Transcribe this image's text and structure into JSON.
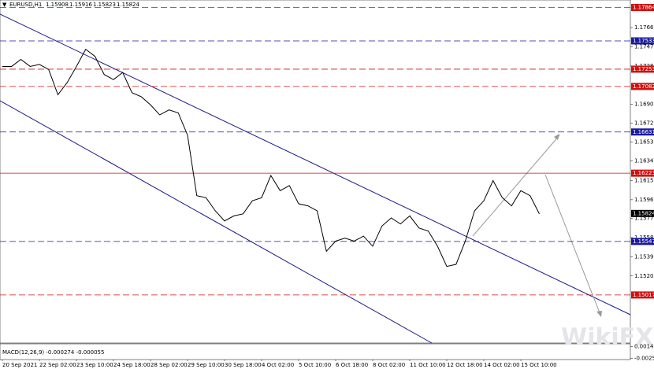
{
  "chart_data": {
    "type": "line",
    "title": "EURUSD,H1",
    "ohlc": [
      "1.15908",
      "1.15916",
      "1.15823",
      "1.15824"
    ],
    "categories": [
      "20 Sep 2021",
      null,
      null,
      null,
      "22 Sep 02:00",
      null,
      null,
      null,
      "23 Sep 10:00",
      null,
      null,
      null,
      "24 Sep 18:00",
      null,
      null,
      null,
      "28 Sep 02:00",
      null,
      null,
      null,
      "29 Sep 10:00",
      null,
      null,
      null,
      "30 Sep 18:00",
      null,
      null,
      null,
      "4 Oct 02:00",
      null,
      null,
      null,
      "5 Oct 10:00",
      null,
      null,
      null,
      "6 Oct 18:00",
      null,
      null,
      null,
      "8 Oct 02:00",
      null,
      null,
      null,
      "11 Oct 10:00",
      null,
      null,
      null,
      "12 Oct 18:00",
      null,
      null,
      null,
      "14 Oct 02:00",
      null,
      null,
      null,
      "15 Oct 10:00",
      null,
      null
    ],
    "series": [
      {
        "name": "EURUSD,H1",
        "color": "#000000",
        "values": [
          1.1728,
          1.1728,
          1.1735,
          1.1728,
          1.173,
          1.1725,
          1.17,
          1.1712,
          1.1728,
          1.1745,
          1.1738,
          1.172,
          1.1715,
          1.1722,
          1.1702,
          1.1698,
          1.169,
          1.168,
          1.1685,
          1.1682,
          1.166,
          1.16,
          1.1598,
          1.1585,
          1.1575,
          1.158,
          1.1582,
          1.1595,
          1.1598,
          1.162,
          1.1605,
          1.161,
          1.1592,
          1.159,
          1.1585,
          1.1545,
          1.1555,
          1.1558,
          1.1555,
          1.156,
          1.155,
          1.157,
          1.1578,
          1.1572,
          1.158,
          1.1568,
          1.1565,
          1.155,
          1.153,
          1.1532,
          1.1555,
          1.1585,
          1.1595,
          1.1615,
          1.1598,
          1.159,
          1.1605,
          1.16,
          1.1582
        ]
      }
    ],
    "ylim": [
      1.17938,
      1.14541
    ],
    "yticks": [
      {
        "value": 1.17665,
        "label": "1.17665"
      },
      {
        "value": 1.17475,
        "label": "1.17475"
      },
      {
        "value": 1.17285,
        "label": "1.17285"
      },
      {
        "value": 1.16905,
        "label": "1.16905"
      },
      {
        "value": 1.1672,
        "label": "1.16720"
      },
      {
        "value": 1.1653,
        "label": "1.16530"
      },
      {
        "value": 1.16345,
        "label": "1.16345"
      },
      {
        "value": 1.1615,
        "label": "1.16150"
      },
      {
        "value": 1.1596,
        "label": "1.15960"
      },
      {
        "value": 1.15775,
        "label": "1.15775"
      },
      {
        "value": 1.15585,
        "label": "1.15585"
      },
      {
        "value": 1.15395,
        "label": "1.15395"
      },
      {
        "value": 1.15205,
        "label": "1.15205"
      }
    ],
    "levels": [
      {
        "value": 1.17864,
        "color": "#d01010",
        "style": "dashed"
      },
      {
        "value": 1.17533,
        "color": "#1a1a9c",
        "style": "dashed"
      },
      {
        "value": 1.17253,
        "color": "#d01010",
        "style": "dashed"
      },
      {
        "value": 1.17082,
        "color": "#d01010",
        "style": "dashed"
      },
      {
        "value": 1.16631,
        "color": "#1a1a9c",
        "style": "dashed"
      },
      {
        "value": 1.16223,
        "color": "#d01010",
        "style": "solid"
      },
      {
        "value": 1.15824,
        "color": "#000000",
        "style": "none"
      },
      {
        "value": 1.15547,
        "color": "#1a1a9c",
        "style": "dashed"
      },
      {
        "value": 1.15017,
        "color": "#d01010",
        "style": "dashed"
      }
    ],
    "macd": {
      "title": "MACD(12,26,9) -0.000274 -0.000055",
      "ylim": [
        0.0025,
        -0.003
      ],
      "yticks": [
        {
          "value": 0.001491,
          "label": "0.001491"
        },
        {
          "value": -0.00255,
          "label": "-0.00255"
        }
      ]
    },
    "watermark": "WikiFX"
  }
}
